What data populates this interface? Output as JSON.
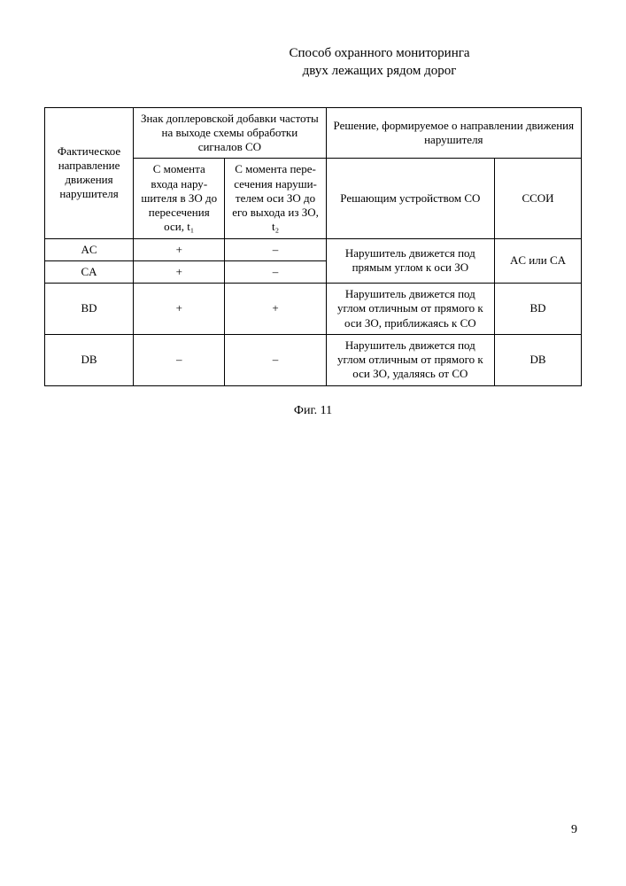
{
  "title_line1": "Способ охранного мониторинга",
  "title_line2": "двух лежащих рядом дорог",
  "caption": "Фиг. 11",
  "page_number": "9",
  "table": {
    "header": {
      "col1": "Фактическое направление движения нарушителя",
      "col2_group": "Знак доплеровской добавки частоты на выходе схемы обработки сигналов СО",
      "col2a": "С момента входа нару­шителя в ЗО до пересече­ния оси, t₁",
      "col2b": "С момента пере­сечения наруши­телем оси ЗО до его выхода из ЗО, t₂",
      "col3_group": "Решение, формируемое о направлении движения нарушителя",
      "col3a": "Решающим устройством СО",
      "col3b": "ССОИ"
    },
    "rows": [
      {
        "dir": "AC",
        "s1": "+",
        "s2": "–",
        "decision_co": "Нарушитель движется под прямым углом к оси ЗО",
        "ssoi": "AC или CA",
        "merge_decision": true,
        "merge_ssoi": true
      },
      {
        "dir": "CA",
        "s1": "+",
        "s2": "–"
      },
      {
        "dir": "BD",
        "s1": "+",
        "s2": "+",
        "decision_co": "Нарушитель движется под углом отличным от прямого к оси ЗО, приближаясь к СО",
        "ssoi": "BD"
      },
      {
        "dir": "DB",
        "s1": "–",
        "s2": "–",
        "decision_co": "Нарушитель движется под углом отличным от прямого к оси ЗО, удаляясь от СО",
        "ssoi": "DB"
      }
    ]
  }
}
